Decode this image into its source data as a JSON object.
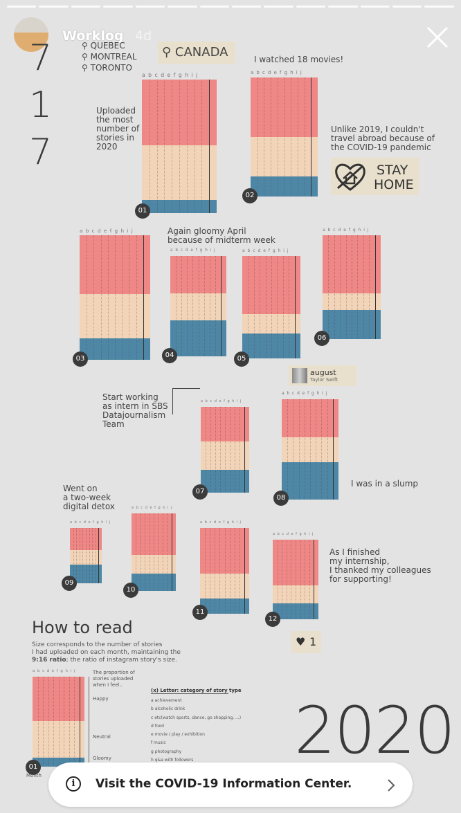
{
  "story": {
    "username": "Worklog",
    "age": "4d",
    "progress_segments": 14
  },
  "infographic": {
    "day_digits": [
      "7",
      "1",
      "7"
    ],
    "cities": [
      "QUEBEC",
      "MONTREAL",
      "TORONTO"
    ],
    "country_tag": "CANADA",
    "letters": "a b c d e f g h i j",
    "months": [
      {
        "label": "01",
        "happy": 0.49,
        "neutral": 0.32,
        "gloomy": 0.1
      },
      {
        "label": "02",
        "happy": 0.5,
        "neutral": 0.33,
        "gloomy": 0.17
      },
      {
        "label": "03",
        "happy": 0.47,
        "neutral": 0.36,
        "gloomy": 0.17
      },
      {
        "label": "04",
        "happy": 0.37,
        "neutral": 0.27,
        "gloomy": 0.36
      },
      {
        "label": "05",
        "happy": 0.57,
        "neutral": 0.19,
        "gloomy": 0.24
      },
      {
        "label": "06",
        "happy": 0.56,
        "neutral": 0.16,
        "gloomy": 0.28
      },
      {
        "label": "07",
        "happy": 0.4,
        "neutral": 0.33,
        "gloomy": 0.27
      },
      {
        "label": "08",
        "happy": 0.38,
        "neutral": 0.25,
        "gloomy": 0.37
      },
      {
        "label": "09",
        "happy": 0.4,
        "neutral": 0.26,
        "gloomy": 0.34
      },
      {
        "label": "10",
        "happy": 0.54,
        "neutral": 0.24,
        "gloomy": 0.22
      },
      {
        "label": "11",
        "happy": 0.53,
        "neutral": 0.29,
        "gloomy": 0.18
      },
      {
        "label": "12",
        "happy": 0.57,
        "neutral": 0.23,
        "gloomy": 0.2
      }
    ],
    "annotations": {
      "movies": "I watched 18 movies!",
      "uploaded": "Uploaded\nthe most\nnumber of\nstories in\n2020",
      "covid": "Unlike 2019, I couldn't\ntravel abroad because of\nthe COVID-19 pandemic",
      "stay": "STAY",
      "home": "HOME",
      "april": "Again gloomy April\nbecause of midterm week",
      "intern": "Start working\nas intern in SBS\nDatajournalism\nTeam",
      "song_title": "august",
      "song_artist": "Taylor Swift",
      "slump": "I was in a slump",
      "detox": "Went on\na two-week\ndigital detox",
      "finished": "As I finished\nmy internship,\nI thanked my colleagues\nfor supporting!",
      "likes": "1"
    },
    "how_to_read": {
      "title": "How to read",
      "desc_1": "Size corresponds to the number of stories",
      "desc_2": "I had uploaded on each month, maintaining the",
      "desc_bold": "9:16 ratio",
      "desc_3": "; the ratio of instagram story's size.",
      "proportion": "The proportion of\nstories uploaded\nwhen I feel..",
      "happy": "Happy",
      "neutral": "Neutral",
      "gloomy": "Gloomy",
      "month": "Month",
      "month_num": "01",
      "legend_title": "(x) Letter: category of story type",
      "legend": [
        "a achievement",
        "b alcoholic drink",
        "c etc(watch sports, dance, go shopping, ...)",
        "d food",
        "e movie / play / exhibition",
        "f music",
        "g photography",
        "h q&a with followers"
      ]
    },
    "year": "2020"
  },
  "info_bar": {
    "label": "Visit the COVID-19 Information Center."
  },
  "colors": {
    "happy": "#ee8785",
    "neutral": "#f2d4b8",
    "gloomy": "#4e87a5"
  }
}
